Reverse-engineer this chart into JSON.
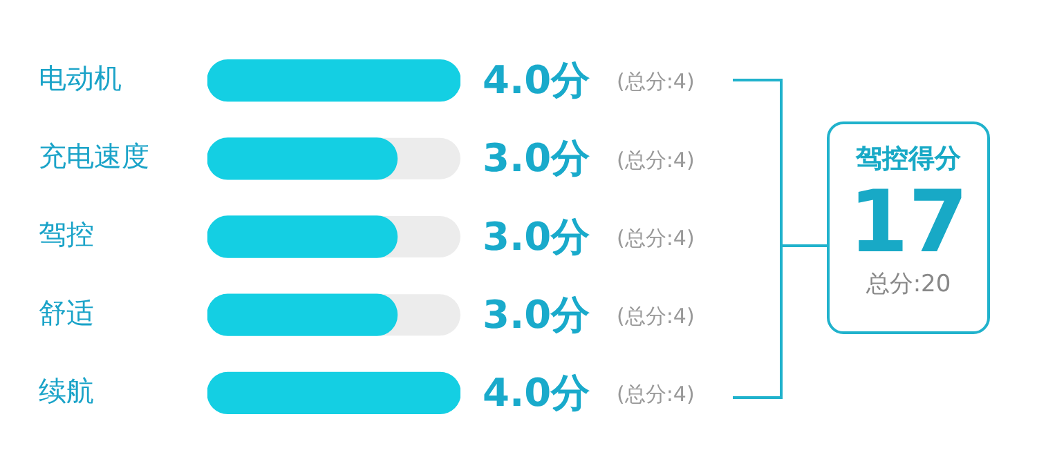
{
  "chart_data": {
    "type": "bar",
    "orientation": "horizontal",
    "categories": [
      "电动机",
      "充电速度",
      "驾控",
      "舒适",
      "续航"
    ],
    "values": [
      4.0,
      3.0,
      3.0,
      3.0,
      4.0
    ],
    "color": "#14cfe3",
    "xlim": [
      0,
      4
    ],
    "tick_labels": "y",
    "value_labels": [
      "4.0分",
      "3.0分",
      "3.0分",
      "3.0分",
      "4.0分"
    ],
    "annotations": [
      "(总分:4)",
      "(总分:4)",
      "(总分:4)",
      "(总分:4)",
      "(总分:4)",
      "驾控得分",
      "17",
      "总分:20"
    ]
  }
}
